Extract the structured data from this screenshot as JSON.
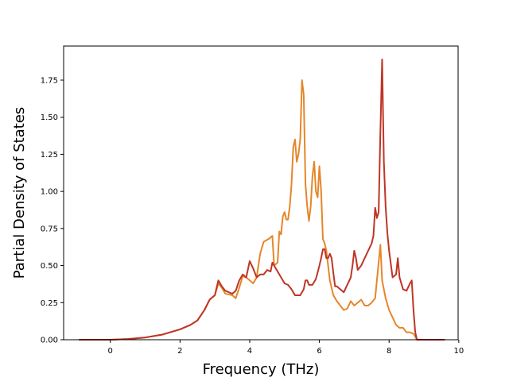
{
  "chart_data": {
    "type": "line",
    "title": "",
    "xlabel": "Frequency (THz)",
    "ylabel": "Partial Density of States",
    "xlim": [
      -1.34,
      9.98
    ],
    "ylim": [
      0,
      1.98
    ],
    "xticks": [
      0,
      2,
      4,
      6,
      8,
      10
    ],
    "xtick_labels": [
      "0",
      "2",
      "4",
      "6",
      "8",
      "10"
    ],
    "yticks": [
      0,
      0.25,
      0.5,
      0.75,
      1.0,
      1.25,
      1.5,
      1.75
    ],
    "ytick_labels": [
      "0.00",
      "0.25",
      "0.50",
      "0.75",
      "1.00",
      "1.25",
      "1.50",
      "1.75"
    ],
    "grid": false,
    "series": [
      {
        "color": "#e6862a",
        "points": [
          [
            -0.9,
            0
          ],
          [
            0.0,
            0.0
          ],
          [
            0.5,
            0.005
          ],
          [
            1.0,
            0.015
          ],
          [
            1.5,
            0.035
          ],
          [
            2.0,
            0.07
          ],
          [
            2.3,
            0.1
          ],
          [
            2.5,
            0.13
          ],
          [
            2.7,
            0.2
          ],
          [
            2.85,
            0.27
          ],
          [
            3.0,
            0.3
          ],
          [
            3.1,
            0.38
          ],
          [
            3.2,
            0.35
          ],
          [
            3.3,
            0.31
          ],
          [
            3.5,
            0.3
          ],
          [
            3.6,
            0.28
          ],
          [
            3.7,
            0.35
          ],
          [
            3.8,
            0.43
          ],
          [
            3.9,
            0.42
          ],
          [
            4.0,
            0.4
          ],
          [
            4.1,
            0.38
          ],
          [
            4.2,
            0.42
          ],
          [
            4.3,
            0.58
          ],
          [
            4.4,
            0.66
          ],
          [
            4.55,
            0.68
          ],
          [
            4.65,
            0.7
          ],
          [
            4.7,
            0.5
          ],
          [
            4.8,
            0.52
          ],
          [
            4.85,
            0.73
          ],
          [
            4.9,
            0.71
          ],
          [
            4.95,
            0.83
          ],
          [
            5.0,
            0.86
          ],
          [
            5.05,
            0.81
          ],
          [
            5.1,
            0.81
          ],
          [
            5.15,
            0.9
          ],
          [
            5.2,
            1.05
          ],
          [
            5.25,
            1.3
          ],
          [
            5.3,
            1.35
          ],
          [
            5.35,
            1.2
          ],
          [
            5.4,
            1.25
          ],
          [
            5.45,
            1.35
          ],
          [
            5.5,
            1.75
          ],
          [
            5.55,
            1.65
          ],
          [
            5.6,
            1.05
          ],
          [
            5.65,
            0.9
          ],
          [
            5.7,
            0.8
          ],
          [
            5.75,
            0.9
          ],
          [
            5.8,
            1.1
          ],
          [
            5.85,
            1.2
          ],
          [
            5.9,
            1.0
          ],
          [
            5.95,
            0.96
          ],
          [
            6.0,
            1.17
          ],
          [
            6.05,
            1.0
          ],
          [
            6.1,
            0.68
          ],
          [
            6.15,
            0.65
          ],
          [
            6.2,
            0.6
          ],
          [
            6.3,
            0.4
          ],
          [
            6.4,
            0.3
          ],
          [
            6.5,
            0.26
          ],
          [
            6.6,
            0.23
          ],
          [
            6.7,
            0.2
          ],
          [
            6.8,
            0.21
          ],
          [
            6.9,
            0.26
          ],
          [
            7.0,
            0.23
          ],
          [
            7.1,
            0.25
          ],
          [
            7.2,
            0.27
          ],
          [
            7.3,
            0.23
          ],
          [
            7.4,
            0.23
          ],
          [
            7.5,
            0.25
          ],
          [
            7.6,
            0.28
          ],
          [
            7.65,
            0.4
          ],
          [
            7.75,
            0.64
          ],
          [
            7.8,
            0.4
          ],
          [
            7.9,
            0.28
          ],
          [
            8.0,
            0.2
          ],
          [
            8.1,
            0.15
          ],
          [
            8.2,
            0.1
          ],
          [
            8.3,
            0.08
          ],
          [
            8.4,
            0.08
          ],
          [
            8.5,
            0.05
          ],
          [
            8.6,
            0.05
          ],
          [
            8.7,
            0.04
          ],
          [
            8.75,
            0.02
          ],
          [
            8.8,
            0.0
          ],
          [
            9.6,
            0
          ]
        ]
      },
      {
        "color": "#be3526",
        "points": [
          [
            -0.9,
            0
          ],
          [
            0.0,
            0.0
          ],
          [
            0.5,
            0.005
          ],
          [
            1.0,
            0.015
          ],
          [
            1.5,
            0.035
          ],
          [
            2.0,
            0.07
          ],
          [
            2.3,
            0.1
          ],
          [
            2.5,
            0.13
          ],
          [
            2.7,
            0.2
          ],
          [
            2.85,
            0.27
          ],
          [
            3.0,
            0.3
          ],
          [
            3.1,
            0.4
          ],
          [
            3.2,
            0.36
          ],
          [
            3.3,
            0.33
          ],
          [
            3.5,
            0.31
          ],
          [
            3.6,
            0.33
          ],
          [
            3.7,
            0.4
          ],
          [
            3.8,
            0.44
          ],
          [
            3.9,
            0.42
          ],
          [
            4.0,
            0.53
          ],
          [
            4.1,
            0.48
          ],
          [
            4.2,
            0.42
          ],
          [
            4.3,
            0.44
          ],
          [
            4.4,
            0.44
          ],
          [
            4.5,
            0.47
          ],
          [
            4.6,
            0.46
          ],
          [
            4.65,
            0.52
          ],
          [
            4.7,
            0.5
          ],
          [
            4.8,
            0.46
          ],
          [
            4.9,
            0.42
          ],
          [
            5.0,
            0.38
          ],
          [
            5.1,
            0.37
          ],
          [
            5.2,
            0.34
          ],
          [
            5.3,
            0.3
          ],
          [
            5.45,
            0.3
          ],
          [
            5.55,
            0.34
          ],
          [
            5.6,
            0.4
          ],
          [
            5.65,
            0.4
          ],
          [
            5.7,
            0.37
          ],
          [
            5.8,
            0.37
          ],
          [
            5.9,
            0.41
          ],
          [
            6.0,
            0.5
          ],
          [
            6.05,
            0.55
          ],
          [
            6.1,
            0.61
          ],
          [
            6.15,
            0.61
          ],
          [
            6.2,
            0.55
          ],
          [
            6.25,
            0.55
          ],
          [
            6.3,
            0.58
          ],
          [
            6.35,
            0.55
          ],
          [
            6.4,
            0.45
          ],
          [
            6.45,
            0.36
          ],
          [
            6.5,
            0.36
          ],
          [
            6.6,
            0.34
          ],
          [
            6.7,
            0.32
          ],
          [
            6.8,
            0.37
          ],
          [
            6.9,
            0.42
          ],
          [
            6.95,
            0.5
          ],
          [
            7.0,
            0.6
          ],
          [
            7.05,
            0.55
          ],
          [
            7.1,
            0.47
          ],
          [
            7.2,
            0.5
          ],
          [
            7.3,
            0.55
          ],
          [
            7.4,
            0.6
          ],
          [
            7.5,
            0.65
          ],
          [
            7.55,
            0.7
          ],
          [
            7.6,
            0.89
          ],
          [
            7.65,
            0.82
          ],
          [
            7.7,
            0.86
          ],
          [
            7.75,
            1.4
          ],
          [
            7.8,
            1.89
          ],
          [
            7.85,
            1.2
          ],
          [
            7.9,
            0.9
          ],
          [
            7.95,
            0.72
          ],
          [
            8.0,
            0.6
          ],
          [
            8.1,
            0.42
          ],
          [
            8.2,
            0.44
          ],
          [
            8.25,
            0.55
          ],
          [
            8.3,
            0.42
          ],
          [
            8.4,
            0.34
          ],
          [
            8.5,
            0.33
          ],
          [
            8.6,
            0.38
          ],
          [
            8.65,
            0.4
          ],
          [
            8.7,
            0.2
          ],
          [
            8.75,
            0.05
          ],
          [
            8.8,
            0.0
          ],
          [
            9.6,
            0
          ]
        ]
      }
    ]
  }
}
